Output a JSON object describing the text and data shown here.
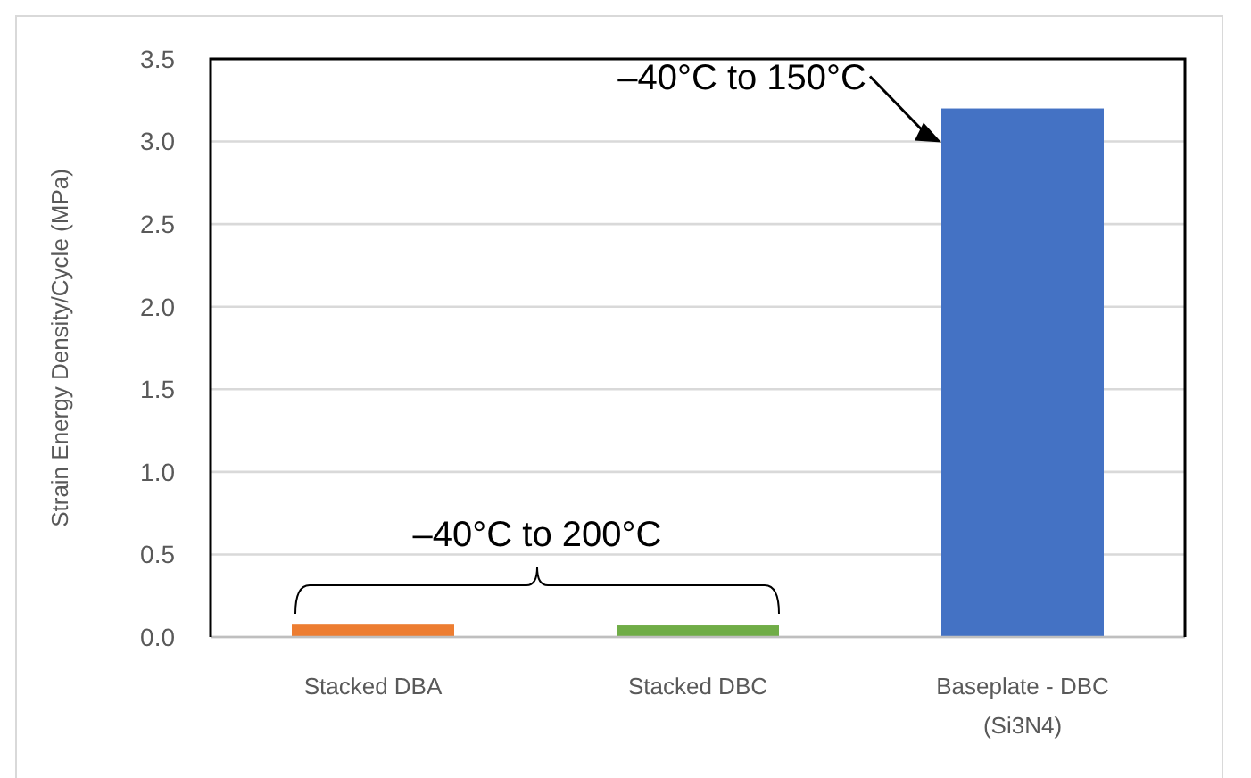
{
  "chart_data": {
    "type": "bar",
    "ylabel": "Strain Energy Density/Cycle (MPa)",
    "categories": [
      "Stacked DBA",
      "Stacked DBC",
      "Baseplate - DBC (Si3N4)"
    ],
    "values": [
      0.08,
      0.07,
      3.2
    ],
    "colors": [
      "#ed7d31",
      "#70ad47",
      "#4472c4"
    ],
    "ylim": [
      0,
      3.5
    ],
    "yticks": [
      {
        "value": 0,
        "label": "0.0"
      },
      {
        "value": 0.5,
        "label": "0.5"
      },
      {
        "value": 1,
        "label": "1.0"
      },
      {
        "value": 1.5,
        "label": "1.5"
      },
      {
        "value": 2,
        "label": "2.0"
      },
      {
        "value": 2.5,
        "label": "2.5"
      },
      {
        "value": 3,
        "label": "3.0"
      },
      {
        "value": 3.5,
        "label": "3.5"
      }
    ],
    "grid": "y",
    "annotations": [
      "–40°C to 200°C",
      "–40°C to 150°C"
    ]
  }
}
